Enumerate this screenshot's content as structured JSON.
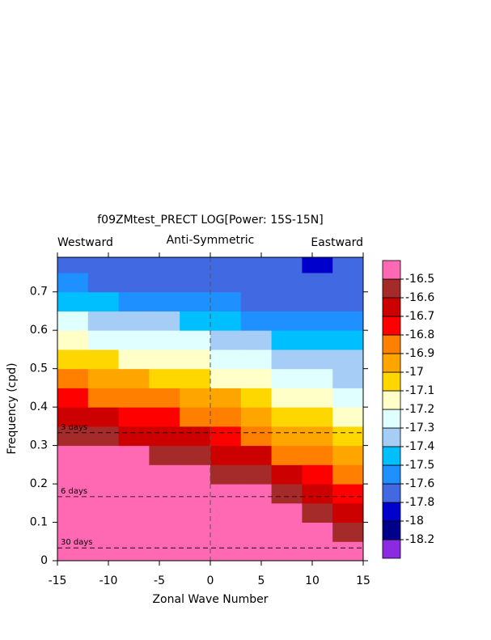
{
  "chart_data": {
    "type": "contour",
    "title": "f09ZMtest_PRECT LOG[Power: 15S-15N]",
    "subtitle": "Anti-Symmetric",
    "left_label": "Westward",
    "right_label": "Eastward",
    "x_label": "Zonal Wave Number",
    "y_label": "Frequency (cpd)",
    "xlim": [
      -15,
      15
    ],
    "ylim": [
      0,
      0.79
    ],
    "xticks": [
      -15,
      -10,
      -5,
      0,
      5,
      10,
      15
    ],
    "yticks": [
      0,
      0.1,
      0.2,
      0.3,
      0.4,
      0.5,
      0.6,
      0.7
    ],
    "x": [
      -13.5,
      -10.5,
      -7.5,
      -4.5,
      -1.5,
      1.5,
      4.5,
      7.5,
      10.5,
      13.5
    ],
    "y": [
      0.025,
      0.075,
      0.125,
      0.175,
      0.225,
      0.275,
      0.325,
      0.375,
      0.425,
      0.475,
      0.525,
      0.575,
      0.625,
      0.675,
      0.725,
      0.775
    ],
    "z": [
      [
        -16.35,
        -16.38,
        -16.4,
        -16.43,
        -16.45,
        -16.48,
        -16.51,
        -16.64,
        -16.77,
        -16.9,
        -17.03,
        -17.16,
        -17.29,
        -17.42,
        -17.55,
        -17.68
      ],
      [
        -16.36,
        -16.39,
        -16.41,
        -16.44,
        -16.46,
        -16.49,
        -16.57,
        -16.69,
        -16.83,
        -16.96,
        -17.09,
        -17.22,
        -17.35,
        -17.48,
        -17.61,
        -17.74
      ],
      [
        -16.37,
        -16.4,
        -16.42,
        -16.45,
        -16.47,
        -16.49,
        -16.61,
        -16.74,
        -16.87,
        -16.99,
        -17.12,
        -17.25,
        -17.38,
        -17.51,
        -17.63,
        -17.76
      ],
      [
        -16.38,
        -16.4,
        -16.43,
        -16.45,
        -16.48,
        -16.51,
        -16.64,
        -16.76,
        -16.89,
        -17.01,
        -17.14,
        -17.26,
        -17.39,
        -17.51,
        -17.64,
        -17.76
      ],
      [
        -16.39,
        -16.41,
        -16.44,
        -16.46,
        -16.49,
        -16.56,
        -16.68,
        -16.81,
        -16.93,
        -17.05,
        -17.17,
        -17.29,
        -17.42,
        -17.54,
        -17.66,
        -17.75
      ],
      [
        -16.4,
        -16.43,
        -16.45,
        -16.48,
        -16.51,
        -16.63,
        -16.75,
        -16.87,
        -16.99,
        -17.11,
        -17.23,
        -17.35,
        -17.47,
        -17.59,
        -17.71,
        -17.75
      ],
      [
        -16.42,
        -16.44,
        -16.47,
        -16.49,
        -16.58,
        -16.69,
        -16.81,
        -16.93,
        -17.04,
        -17.16,
        -17.27,
        -17.39,
        -17.51,
        -17.62,
        -17.73,
        -17.75
      ],
      [
        -16.45,
        -16.47,
        -16.49,
        -16.59,
        -16.69,
        -16.81,
        -16.91,
        -17.01,
        -17.12,
        -17.22,
        -17.33,
        -17.43,
        -17.54,
        -17.64,
        -17.75,
        -17.75
      ],
      [
        -16.47,
        -16.49,
        -16.59,
        -16.69,
        -16.78,
        -16.88,
        -16.98,
        -17.08,
        -17.17,
        -17.27,
        -17.37,
        -17.47,
        -17.56,
        -17.66,
        -17.76,
        -17.85
      ],
      [
        -16.49,
        -16.57,
        -16.66,
        -16.75,
        -16.84,
        -16.94,
        -17.03,
        -17.12,
        -17.21,
        -17.31,
        -17.39,
        -17.49,
        -17.58,
        -17.67,
        -17.77,
        -17.75
      ]
    ],
    "levels": [
      -18.2,
      -18,
      -17.8,
      -17.6,
      -17.5,
      -17.4,
      -17.3,
      -17.2,
      -17.1,
      -17,
      -16.9,
      -16.8,
      -16.7,
      -16.6,
      -16.5
    ],
    "colors": [
      "#8a2be2",
      "#00008b",
      "#0000cd",
      "#4169e1",
      "#1e90ff",
      "#00bfff",
      "#a6cdf5",
      "#e0ffff",
      "#ffffc8",
      "#ffd700",
      "#ffa500",
      "#ff7f00",
      "#ff0000",
      "#cd0000",
      "#a52a2a",
      "#ff69b4"
    ],
    "hlines": [
      {
        "value": 0.3333,
        "label": "3 days"
      },
      {
        "value": 0.1667,
        "label": "6 days"
      },
      {
        "value": 0.0333,
        "label": "30 days"
      }
    ],
    "vline": 0
  }
}
